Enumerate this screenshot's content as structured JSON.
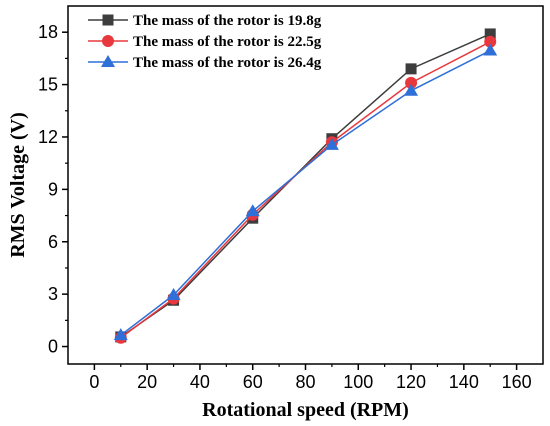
{
  "chart_data": {
    "type": "line",
    "title": "",
    "xlabel": "Rotational speed (RPM)",
    "ylabel": "RMS Voltage  (V)",
    "xlim": [
      -10,
      170
    ],
    "ylim": [
      -1,
      19.5
    ],
    "xticks": [
      0,
      20,
      40,
      60,
      80,
      100,
      120,
      140,
      160
    ],
    "yticks": [
      0,
      3,
      6,
      9,
      12,
      15,
      18
    ],
    "grid": false,
    "legend_position": "top-left",
    "series": [
      {
        "name": "The mass of the rotor is 19.8g",
        "marker": "square",
        "color": "#3d3d3d",
        "x": [
          10,
          30,
          60,
          90,
          120,
          150
        ],
        "y": [
          0.55,
          2.65,
          7.35,
          11.9,
          15.9,
          17.9
        ]
      },
      {
        "name": "The mass of the rotor is 22.5g",
        "marker": "circle",
        "color": "#e8383d",
        "x": [
          10,
          30,
          60,
          90,
          120,
          150
        ],
        "y": [
          0.5,
          2.75,
          7.55,
          11.7,
          15.1,
          17.45
        ]
      },
      {
        "name": "The mass of the rotor is 26.4g",
        "marker": "triangle",
        "color": "#2f6fd8",
        "x": [
          10,
          30,
          60,
          90,
          120,
          150
        ],
        "y": [
          0.65,
          2.95,
          7.75,
          11.55,
          14.65,
          16.95
        ]
      }
    ]
  }
}
